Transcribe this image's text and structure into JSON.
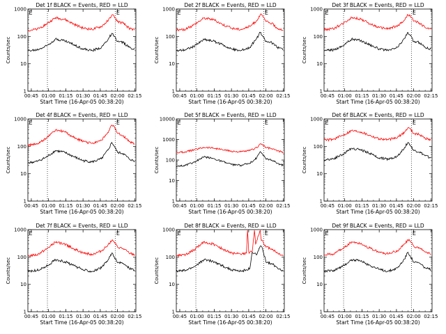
{
  "figure": {
    "ylabel": "Counts/sec",
    "xlabel": "Start Time (16-Apr-05 00:38:20)",
    "x_ticks": [
      "00:45",
      "01:00",
      "01:15",
      "01:30",
      "01:45",
      "02:00",
      "02:15"
    ],
    "y_ticks": [
      "1",
      "10",
      "100",
      "1000"
    ],
    "colors": {
      "events": "#000000",
      "lld": "#ff0000"
    }
  },
  "chart_data": [
    {
      "type": "line",
      "title": "Det 1f BLACK = Events, RED = LLD",
      "xlabel": "Start Time (16-Apr-05 00:38:20)",
      "ylabel": "Counts/sec",
      "y_scale": "log",
      "ylim": [
        1,
        1000
      ],
      "xlim": [
        "00:42",
        "02:16"
      ],
      "flag_labels": [
        {
          "x": "00:42",
          "text": "E"
        },
        {
          "x": "01:58",
          "text": "E"
        }
      ],
      "dotted_lines_x": [
        "00:59",
        "01:58"
      ],
      "series": [
        {
          "name": "Events",
          "color": "#000000",
          "x": [
            "00:42",
            "00:50",
            "00:58",
            "01:06",
            "01:14",
            "01:22",
            "01:30",
            "01:38",
            "01:46",
            "01:52",
            "01:55",
            "01:57",
            "02:00",
            "02:05",
            "02:10",
            "02:15"
          ],
          "y": [
            30,
            32,
            45,
            80,
            70,
            50,
            35,
            30,
            40,
            80,
            130,
            100,
            65,
            60,
            40,
            35
          ]
        },
        {
          "name": "LLD",
          "color": "#ff0000",
          "x": [
            "00:42",
            "00:50",
            "00:58",
            "01:06",
            "01:14",
            "01:22",
            "01:30",
            "01:38",
            "01:46",
            "01:52",
            "01:55",
            "01:57",
            "02:00",
            "02:05",
            "02:10",
            "02:15"
          ],
          "y": [
            170,
            180,
            280,
            480,
            420,
            280,
            200,
            180,
            230,
            380,
            600,
            550,
            350,
            300,
            200,
            170
          ]
        }
      ]
    },
    {
      "type": "line",
      "title": "Det 2f BLACK = Events, RED = LLD",
      "xlabel": "Start Time (16-Apr-05 00:38:20)",
      "ylabel": "Counts/sec",
      "y_scale": "log",
      "ylim": [
        1,
        1000
      ],
      "xlim": [
        "00:42",
        "02:16"
      ],
      "flag_labels": [
        {
          "x": "00:42",
          "text": "E"
        },
        {
          "x": "01:58",
          "text": "E"
        }
      ],
      "dotted_lines_x": [
        "00:59",
        "01:58"
      ],
      "series": [
        {
          "name": "Events",
          "color": "#000000",
          "x": [
            "00:42",
            "00:50",
            "00:58",
            "01:06",
            "01:14",
            "01:22",
            "01:30",
            "01:38",
            "01:46",
            "01:52",
            "01:55",
            "01:57",
            "02:00",
            "02:05",
            "02:10",
            "02:15"
          ],
          "y": [
            30,
            33,
            45,
            78,
            68,
            50,
            35,
            30,
            40,
            85,
            140,
            105,
            65,
            60,
            40,
            35
          ]
        },
        {
          "name": "LLD",
          "color": "#ff0000",
          "x": [
            "00:42",
            "00:50",
            "00:58",
            "01:06",
            "01:14",
            "01:22",
            "01:30",
            "01:38",
            "01:46",
            "01:52",
            "01:55",
            "01:57",
            "02:00",
            "02:05",
            "02:10",
            "02:15"
          ],
          "y": [
            170,
            180,
            280,
            470,
            420,
            280,
            200,
            180,
            230,
            380,
            620,
            560,
            350,
            300,
            200,
            170
          ]
        }
      ]
    },
    {
      "type": "line",
      "title": "Det 3f BLACK = Events, RED = LLD",
      "xlabel": "Start Time (16-Apr-05 00:38:20)",
      "ylabel": "Counts/sec",
      "y_scale": "log",
      "ylim": [
        1,
        1000
      ],
      "xlim": [
        "00:42",
        "02:16"
      ],
      "flag_labels": [
        {
          "x": "00:42",
          "text": "E"
        },
        {
          "x": "01:58",
          "text": "E"
        }
      ],
      "dotted_lines_x": [
        "00:59",
        "01:58"
      ],
      "series": [
        {
          "name": "Events",
          "color": "#000000",
          "x": [
            "00:42",
            "00:50",
            "00:58",
            "01:06",
            "01:14",
            "01:22",
            "01:30",
            "01:38",
            "01:46",
            "01:52",
            "01:55",
            "01:57",
            "02:00",
            "02:05",
            "02:10",
            "02:15"
          ],
          "y": [
            30,
            32,
            45,
            80,
            70,
            50,
            35,
            30,
            40,
            85,
            140,
            110,
            65,
            60,
            40,
            35
          ]
        },
        {
          "name": "LLD",
          "color": "#ff0000",
          "x": [
            "00:42",
            "00:50",
            "00:58",
            "01:06",
            "01:14",
            "01:22",
            "01:30",
            "01:38",
            "01:46",
            "01:52",
            "01:55",
            "01:57",
            "02:00",
            "02:05",
            "02:10",
            "02:15"
          ],
          "y": [
            180,
            190,
            290,
            500,
            430,
            290,
            210,
            190,
            240,
            390,
            620,
            570,
            360,
            310,
            210,
            180
          ]
        }
      ]
    },
    {
      "type": "line",
      "title": "Det 4f BLACK = Events, RED = LLD",
      "xlabel": "Start Time (16-Apr-05 00:38:20)",
      "ylabel": "Counts/sec",
      "y_scale": "log",
      "ylim": [
        1,
        1000
      ],
      "xlim": [
        "00:42",
        "02:16"
      ],
      "flag_labels": [
        {
          "x": "00:42",
          "text": "E"
        },
        {
          "x": "01:58",
          "text": "E"
        }
      ],
      "dotted_lines_x": [
        "00:59",
        "01:58"
      ],
      "series": [
        {
          "name": "Events",
          "color": "#000000",
          "x": [
            "00:42",
            "00:50",
            "00:58",
            "01:06",
            "01:14",
            "01:22",
            "01:30",
            "01:38",
            "01:46",
            "01:52",
            "01:55",
            "01:57",
            "02:00",
            "02:05",
            "02:10",
            "02:15"
          ],
          "y": [
            25,
            28,
            40,
            70,
            60,
            42,
            30,
            27,
            35,
            75,
            140,
            105,
            60,
            55,
            35,
            28
          ]
        },
        {
          "name": "LLD",
          "color": "#ff0000",
          "x": [
            "00:42",
            "00:50",
            "00:58",
            "01:06",
            "01:14",
            "01:22",
            "01:30",
            "01:38",
            "01:46",
            "01:52",
            "01:55",
            "01:57",
            "02:00",
            "02:05",
            "02:10",
            "02:15"
          ],
          "y": [
            110,
            120,
            200,
            400,
            340,
            210,
            150,
            130,
            170,
            320,
            600,
            540,
            300,
            250,
            150,
            120
          ]
        }
      ]
    },
    {
      "type": "line",
      "title": "Det 5f BLACK = Events, RED = LLD",
      "xlabel": "Start Time (16-Apr-05 00:38:20)",
      "ylabel": "Counts/sec",
      "y_scale": "log",
      "ylim": [
        1,
        10000
      ],
      "xlim": [
        "00:42",
        "02:16"
      ],
      "flag_labels": [
        {
          "x": "00:42",
          "text": "E"
        },
        {
          "x": "01:58",
          "text": "E"
        }
      ],
      "dotted_lines_x": [
        "00:59",
        "01:58"
      ],
      "series": [
        {
          "name": "Events",
          "color": "#000000",
          "x": [
            "00:42",
            "00:50",
            "00:58",
            "01:06",
            "01:14",
            "01:22",
            "01:30",
            "01:38",
            "01:46",
            "01:52",
            "01:55",
            "01:57",
            "02:00",
            "02:05",
            "02:10",
            "02:15"
          ],
          "y": [
            50,
            55,
            80,
            140,
            120,
            85,
            60,
            55,
            70,
            130,
            260,
            200,
            110,
            100,
            70,
            55
          ]
        },
        {
          "name": "LLD",
          "color": "#ff0000",
          "x": [
            "00:42",
            "00:50",
            "00:58",
            "01:06",
            "01:14",
            "01:22",
            "01:30",
            "01:38",
            "01:46",
            "01:52",
            "01:55",
            "01:57",
            "02:00",
            "02:05",
            "02:10",
            "02:15"
          ],
          "y": [
            230,
            250,
            320,
            420,
            390,
            320,
            270,
            250,
            290,
            400,
            620,
            560,
            400,
            360,
            280,
            240
          ]
        }
      ]
    },
    {
      "type": "line",
      "title": "Det 6f BLACK = Events, RED = LLD",
      "xlabel": "Start Time (16-Apr-05 00:38:20)",
      "ylabel": "Counts/sec",
      "y_scale": "log",
      "ylim": [
        1,
        1000
      ],
      "xlim": [
        "00:42",
        "02:16"
      ],
      "flag_labels": [
        {
          "x": "00:42",
          "text": "E"
        },
        {
          "x": "01:58",
          "text": "E"
        }
      ],
      "dotted_lines_x": [
        "00:59",
        "01:58"
      ],
      "series": [
        {
          "name": "Events",
          "color": "#000000",
          "x": [
            "00:42",
            "00:50",
            "00:58",
            "01:06",
            "01:14",
            "01:22",
            "01:30",
            "01:38",
            "01:46",
            "01:52",
            "01:55",
            "01:57",
            "02:00",
            "02:05",
            "02:10",
            "02:15"
          ],
          "y": [
            32,
            35,
            50,
            85,
            75,
            55,
            38,
            34,
            44,
            90,
            140,
            110,
            70,
            62,
            45,
            38
          ]
        },
        {
          "name": "LLD",
          "color": "#ff0000",
          "x": [
            "00:42",
            "00:50",
            "00:58",
            "01:06",
            "01:14",
            "01:22",
            "01:30",
            "01:38",
            "01:46",
            "01:52",
            "01:55",
            "01:57",
            "02:00",
            "02:05",
            "02:10",
            "02:15"
          ],
          "y": [
            170,
            180,
            250,
            380,
            340,
            250,
            190,
            175,
            210,
            330,
            480,
            440,
            300,
            270,
            200,
            170
          ]
        }
      ]
    },
    {
      "type": "line",
      "title": "Det 7f BLACK = Events, RED = LLD",
      "xlabel": "Start Time (16-Apr-05 00:38:20)",
      "ylabel": "Counts/sec",
      "y_scale": "log",
      "ylim": [
        1,
        1000
      ],
      "xlim": [
        "00:42",
        "02:16"
      ],
      "flag_labels": [
        {
          "x": "00:42",
          "text": "E"
        },
        {
          "x": "01:58",
          "text": "E"
        }
      ],
      "dotted_lines_x": [
        "00:59",
        "01:58"
      ],
      "series": [
        {
          "name": "Events",
          "color": "#000000",
          "x": [
            "00:42",
            "00:50",
            "00:58",
            "01:06",
            "01:14",
            "01:22",
            "01:30",
            "01:38",
            "01:46",
            "01:52",
            "01:55",
            "01:57",
            "02:00",
            "02:05",
            "02:10",
            "02:15"
          ],
          "y": [
            30,
            32,
            45,
            80,
            68,
            48,
            34,
            30,
            40,
            80,
            140,
            105,
            62,
            58,
            40,
            34
          ]
        },
        {
          "name": "LLD",
          "color": "#ff0000",
          "x": [
            "00:42",
            "00:50",
            "00:58",
            "01:06",
            "01:14",
            "01:22",
            "01:30",
            "01:38",
            "01:46",
            "01:52",
            "01:55",
            "01:57",
            "02:00",
            "02:05",
            "02:10",
            "02:15"
          ],
          "y": [
            110,
            120,
            190,
            350,
            300,
            200,
            140,
            125,
            165,
            290,
            400,
            360,
            230,
            200,
            140,
            120
          ]
        }
      ]
    },
    {
      "type": "line",
      "title": "Det 8f BLACK = Events, RED = LLD",
      "xlabel": "Start Time (16-Apr-05 00:38:20)",
      "ylabel": "Counts/sec",
      "y_scale": "log",
      "ylim": [
        1,
        1000
      ],
      "xlim": [
        "00:42",
        "02:16"
      ],
      "flag_labels": [
        {
          "x": "00:42",
          "text": "E"
        },
        {
          "x": "01:58",
          "text": "E"
        }
      ],
      "dotted_lines_x": [
        "00:59",
        "01:58"
      ],
      "series": [
        {
          "name": "Events",
          "color": "#000000",
          "x": [
            "00:42",
            "00:50",
            "00:58",
            "01:06",
            "01:14",
            "01:22",
            "01:30",
            "01:38",
            "01:46",
            "01:48",
            "01:52",
            "01:55",
            "01:57",
            "02:00",
            "02:05",
            "02:10",
            "02:15"
          ],
          "y": [
            30,
            32,
            45,
            80,
            70,
            48,
            34,
            30,
            38,
            150,
            120,
            250,
            200,
            65,
            58,
            40,
            32
          ]
        },
        {
          "name": "LLD",
          "color": "#ff0000",
          "x": [
            "00:42",
            "00:50",
            "00:58",
            "01:06",
            "01:14",
            "01:22",
            "01:30",
            "01:38",
            "01:43",
            "01:44",
            "01:45",
            "01:48",
            "01:50",
            "01:51",
            "01:52",
            "01:55",
            "01:56",
            "01:57",
            "02:00",
            "02:05",
            "02:10",
            "02:15"
          ],
          "y": [
            110,
            120,
            190,
            350,
            300,
            200,
            140,
            125,
            140,
            950,
            150,
            150,
            950,
            300,
            400,
            950,
            400,
            400,
            230,
            200,
            140,
            110
          ]
        }
      ]
    },
    {
      "type": "line",
      "title": "Det 9f BLACK = Events, RED = LLD",
      "xlabel": "Start Time (16-Apr-05 00:38:20)",
      "ylabel": "Counts/sec",
      "y_scale": "log",
      "ylim": [
        1,
        1000
      ],
      "xlim": [
        "00:42",
        "02:16"
      ],
      "flag_labels": [
        {
          "x": "00:42",
          "text": "E"
        },
        {
          "x": "01:58",
          "text": "E"
        }
      ],
      "dotted_lines_x": [
        "00:59",
        "01:58"
      ],
      "series": [
        {
          "name": "Events",
          "color": "#000000",
          "x": [
            "00:42",
            "00:50",
            "00:58",
            "01:06",
            "01:14",
            "01:22",
            "01:30",
            "01:38",
            "01:46",
            "01:52",
            "01:55",
            "01:57",
            "02:00",
            "02:05",
            "02:10",
            "02:15"
          ],
          "y": [
            30,
            32,
            45,
            80,
            70,
            50,
            35,
            30,
            40,
            85,
            150,
            110,
            65,
            60,
            40,
            34
          ]
        },
        {
          "name": "LLD",
          "color": "#ff0000",
          "x": [
            "00:42",
            "00:50",
            "00:58",
            "01:06",
            "01:14",
            "01:22",
            "01:30",
            "01:38",
            "01:46",
            "01:52",
            "01:55",
            "01:57",
            "02:00",
            "02:05",
            "02:10",
            "02:15"
          ],
          "y": [
            120,
            130,
            200,
            360,
            310,
            210,
            150,
            130,
            170,
            300,
            420,
            380,
            250,
            210,
            150,
            125
          ]
        }
      ]
    }
  ]
}
